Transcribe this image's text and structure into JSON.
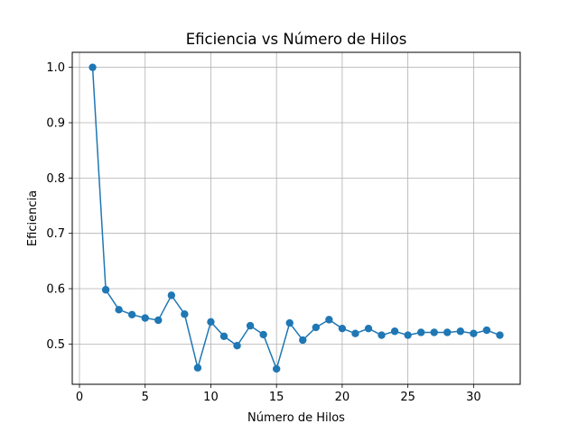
{
  "chart_data": {
    "type": "line",
    "title": "Eficiencia vs Número de Hilos",
    "xlabel": "Número de Hilos",
    "ylabel": "Eficiencia",
    "xlim": [
      -0.55,
      33.55
    ],
    "ylim": [
      0.4272,
      1.0272
    ],
    "xticks": [
      "0",
      "5",
      "10",
      "15",
      "20",
      "25",
      "30"
    ],
    "xtick_values": [
      0,
      5,
      10,
      15,
      20,
      25,
      30
    ],
    "yticks": [
      "0.5",
      "0.6",
      "0.7",
      "0.8",
      "0.9",
      "1.0"
    ],
    "ytick_values": [
      0.5,
      0.6,
      0.7,
      0.8,
      0.9,
      1.0
    ],
    "grid": true,
    "color": "#1f77b4",
    "marker": "circle",
    "series": [
      {
        "x": [
          1,
          2,
          3,
          4,
          5,
          6,
          7,
          8,
          9,
          10,
          11,
          12,
          13,
          14,
          15,
          16,
          17,
          18,
          19,
          20,
          21,
          22,
          23,
          24,
          25,
          26,
          27,
          28,
          29,
          30,
          31,
          32
        ],
        "values": [
          1.0,
          0.598,
          0.562,
          0.553,
          0.547,
          0.543,
          0.588,
          0.554,
          0.457,
          0.54,
          0.514,
          0.497,
          0.533,
          0.517,
          0.455,
          0.538,
          0.507,
          0.53,
          0.544,
          0.528,
          0.519,
          0.528,
          0.516,
          0.523,
          0.516,
          0.521,
          0.521,
          0.521,
          0.523,
          0.519,
          0.525,
          0.516
        ]
      }
    ]
  }
}
